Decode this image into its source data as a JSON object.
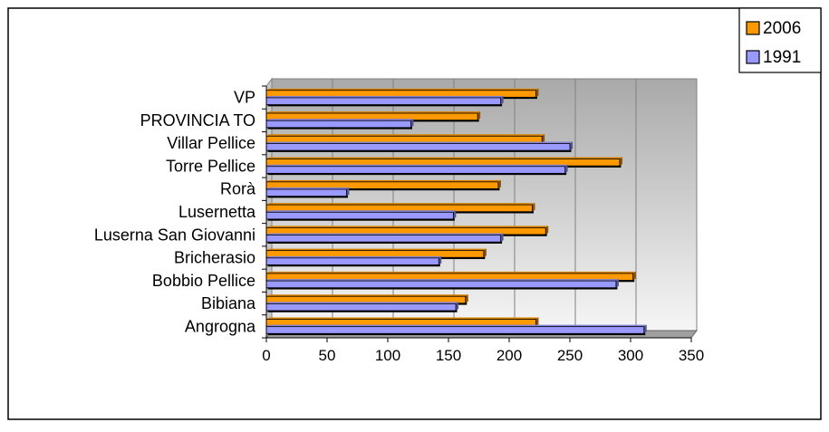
{
  "chart_data": {
    "type": "bar",
    "orientation": "horizontal",
    "categories": [
      "VP",
      "PROVINCIA TO",
      "Villar Pellice",
      "Torre Pellice",
      "Rorà",
      "Lusernetta",
      "Luserna San Giovanni",
      "Bricherasio",
      "Bobbio Pellice",
      "Bibiana",
      "Angrogna"
    ],
    "series": [
      {
        "name": "2006",
        "color": "#ff9900",
        "values": [
          222,
          174,
          227,
          291,
          191,
          219,
          230,
          179,
          302,
          164,
          222
        ]
      },
      {
        "name": "1991",
        "color": "#9999ff",
        "values": [
          193,
          119,
          250,
          246,
          66,
          154,
          193,
          142,
          288,
          156,
          311
        ]
      }
    ],
    "xlim": [
      0,
      350
    ],
    "xticks": [
      "0",
      "50",
      "100",
      "150",
      "200",
      "250",
      "300",
      "350"
    ],
    "grid": true,
    "legend_position": "top-right",
    "title": "",
    "xlabel": "",
    "ylabel": ""
  }
}
